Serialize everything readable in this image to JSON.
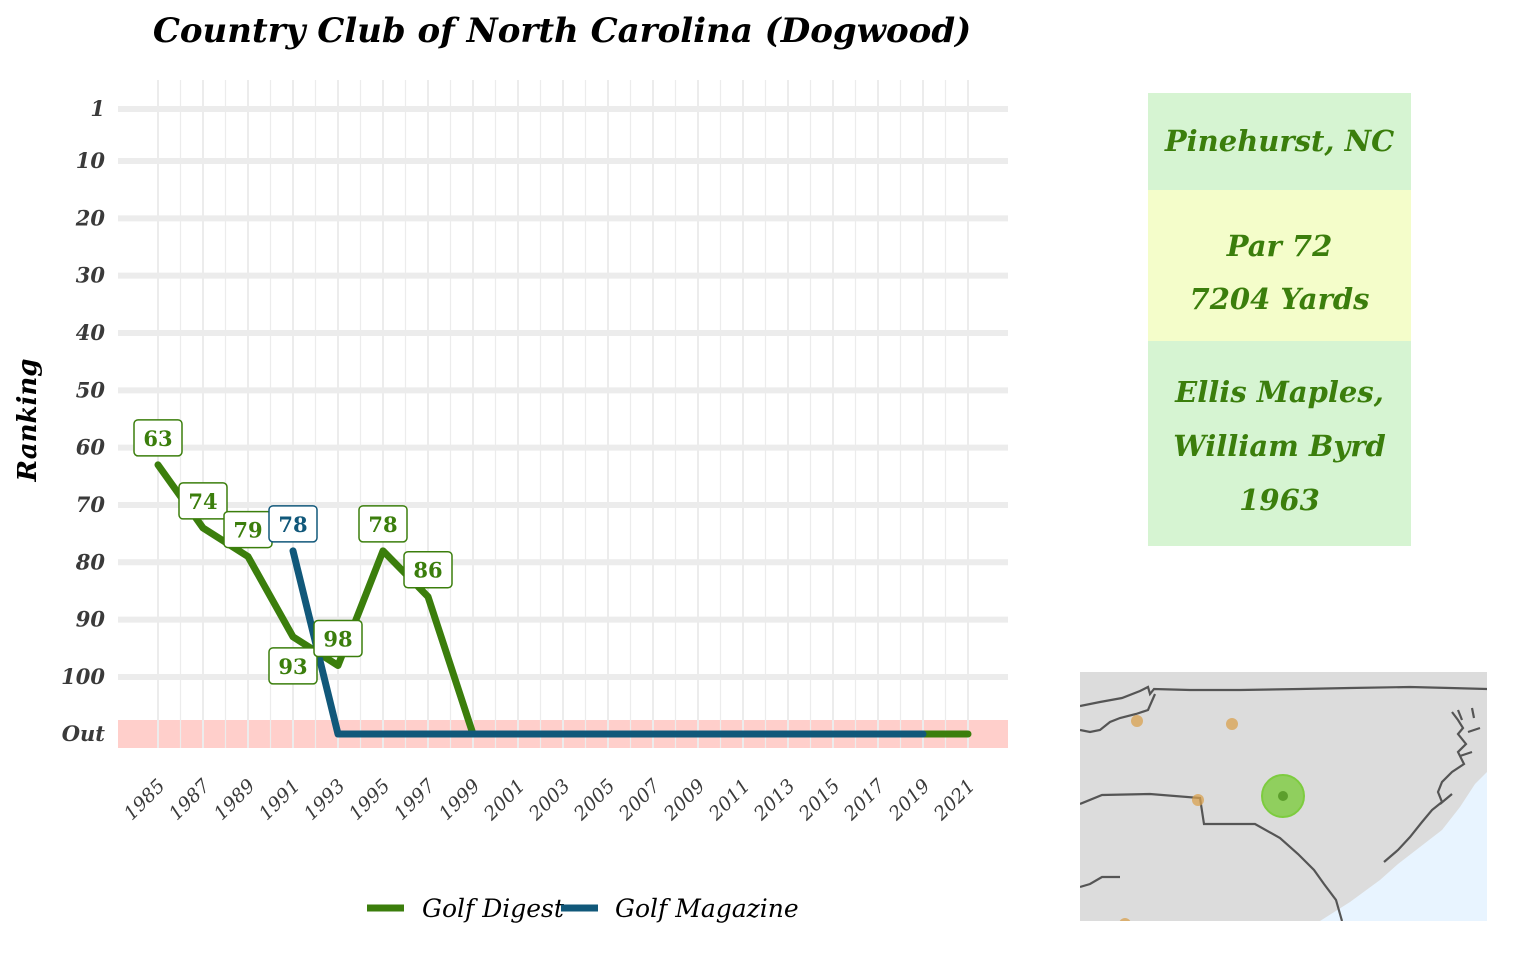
{
  "chart_data": {
    "type": "line",
    "title": "Country Club of North Carolina (Dogwood)",
    "ylabel": "Ranking",
    "xlabel": "",
    "x_ticks": [
      "1985",
      "1987",
      "1989",
      "1991",
      "1993",
      "1995",
      "1997",
      "1999",
      "2001",
      "2003",
      "2005",
      "2007",
      "2009",
      "2011",
      "2013",
      "2015",
      "2017",
      "2019",
      "2021"
    ],
    "y_ticks": [
      "1",
      "10",
      "20",
      "30",
      "40",
      "50",
      "60",
      "70",
      "80",
      "90",
      "100",
      "Out"
    ],
    "y_reversed": true,
    "out_band_color": "#ffcfcb",
    "grid": true,
    "legend_position": "bottom",
    "series": [
      {
        "name": "Golf Digest",
        "color": "#3b7e0c",
        "points": [
          {
            "x": 1985,
            "y": 63,
            "label": "63"
          },
          {
            "x": 1987,
            "y": 74,
            "label": "74"
          },
          {
            "x": 1989,
            "y": 79,
            "label": "79"
          },
          {
            "x": 1991,
            "y": 93,
            "label": "93"
          },
          {
            "x": 1993,
            "y": 98,
            "label": "98"
          },
          {
            "x": 1995,
            "y": 78,
            "label": "78"
          },
          {
            "x": 1997,
            "y": 86,
            "label": "86"
          },
          {
            "x": 1999,
            "y": "Out"
          },
          {
            "x": 2021,
            "y": "Out"
          }
        ]
      },
      {
        "name": "Golf Magazine",
        "color": "#11587a",
        "points": [
          {
            "x": 1991,
            "y": 78,
            "label": "78"
          },
          {
            "x": 1993,
            "y": "Out"
          },
          {
            "x": 2019,
            "y": "Out"
          }
        ]
      }
    ]
  },
  "info": {
    "location": "Pinehurst, NC",
    "par": "Par 72",
    "yards": "7204 Yards",
    "designer_1": "Ellis Maples,",
    "designer_2": "William Byrd",
    "year": "1963"
  },
  "map": {
    "land_color": "#dcdcdc",
    "water_color": "#e8f4ff",
    "border_color": "#555555",
    "highlight_color": "#7dcc3f",
    "other_courses_color": "#d9a24f"
  }
}
